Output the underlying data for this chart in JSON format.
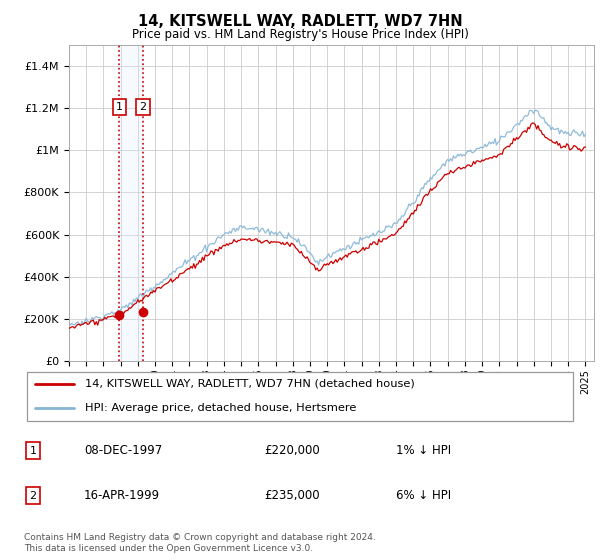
{
  "title": "14, KITSWELL WAY, RADLETT, WD7 7HN",
  "subtitle": "Price paid vs. HM Land Registry's House Price Index (HPI)",
  "transactions": [
    {
      "date_year": 1997.92,
      "price": 220000,
      "label": "1"
    },
    {
      "date_year": 1999.29,
      "price": 235000,
      "label": "2"
    }
  ],
  "transaction_table": [
    {
      "num": "1",
      "date": "08-DEC-1997",
      "price": "£220,000",
      "hpi": "1% ↓ HPI"
    },
    {
      "num": "2",
      "date": "16-APR-1999",
      "price": "£235,000",
      "hpi": "6% ↓ HPI"
    }
  ],
  "legend_line1": "14, KITSWELL WAY, RADLETT, WD7 7HN (detached house)",
  "legend_line2": "HPI: Average price, detached house, Hertsmere",
  "footnote": "Contains HM Land Registry data © Crown copyright and database right 2024.\nThis data is licensed under the Open Government Licence v3.0.",
  "price_line_color": "#cc0000",
  "hpi_line_color": "#85b4d4",
  "vline_color": "#cc0000",
  "shade_color": "#ddeeff",
  "ylim": [
    0,
    1500000
  ],
  "yticks": [
    0,
    200000,
    400000,
    600000,
    800000,
    1000000,
    1200000,
    1400000
  ],
  "ytick_labels": [
    "£0",
    "£200K",
    "£400K",
    "£600K",
    "£800K",
    "£1M",
    "£1.2M",
    "£1.4M"
  ],
  "xlim_start": 1995.0,
  "xlim_end": 2025.5,
  "background_color": "#ffffff",
  "grid_color": "#cccccc"
}
